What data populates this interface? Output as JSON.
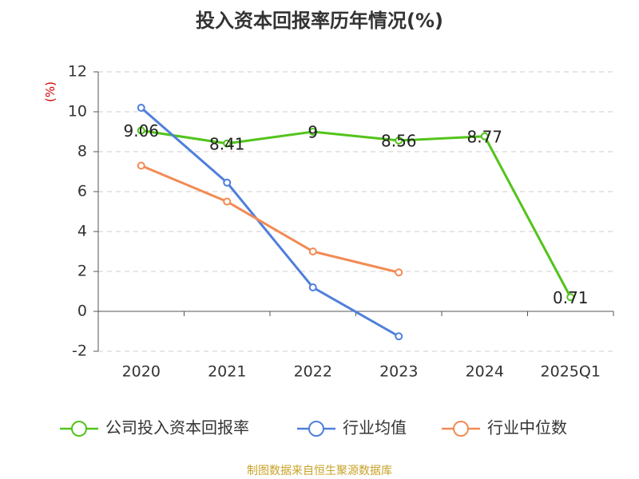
{
  "title": "投入资本回报率历年情况(%)",
  "source": "制图数据来自恒生聚源数据库",
  "chart_data": {
    "type": "line",
    "title": "投入资本回报率历年情况(%)",
    "ylabel": "(%)",
    "xlabel": "",
    "categories": [
      "2020",
      "2021",
      "2022",
      "2023",
      "2024",
      "2025Q1"
    ],
    "ylim": [
      -2,
      12
    ],
    "yticks": [
      -2,
      0,
      2,
      4,
      6,
      8,
      10,
      12
    ],
    "grid": true,
    "legend_position": "bottom",
    "series": [
      {
        "name": "公司投入资本回报率",
        "color": "#52c41a",
        "values": [
          9.06,
          8.41,
          9,
          8.56,
          8.77,
          0.71
        ],
        "labels": [
          "9.06",
          "8.41",
          "9",
          "8.56",
          "8.77",
          "0.71"
        ]
      },
      {
        "name": "行业均值",
        "color": "#4f7fdb",
        "values": [
          10.2,
          6.45,
          1.2,
          -1.25,
          null,
          null
        ]
      },
      {
        "name": "行业中位数",
        "color": "#f28b54",
        "values": [
          7.3,
          5.5,
          3.0,
          1.95,
          null,
          null
        ]
      }
    ]
  }
}
